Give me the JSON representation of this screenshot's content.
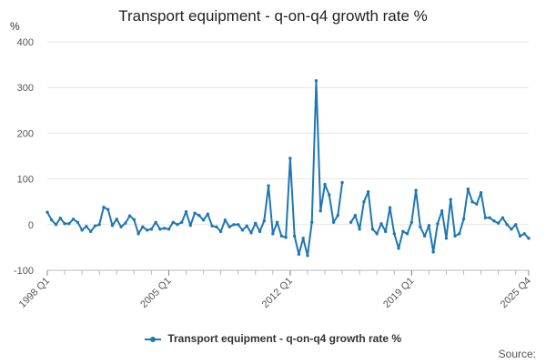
{
  "page": {
    "title": "Transport equipment - q-on-q4 growth rate %",
    "source": "Source:"
  },
  "chart_data": {
    "type": "line",
    "title": "Transport equipment - q-on-q4 growth rate %",
    "ylabel": "%",
    "xlabel": "",
    "ylim": [
      -100,
      400
    ],
    "yticks": [
      -100,
      0,
      100,
      200,
      300,
      400
    ],
    "x_tick_labels": [
      {
        "label": "1998 Q1",
        "index": 0
      },
      {
        "label": "2005 Q1",
        "index": 28
      },
      {
        "label": "2012 Q1",
        "index": 56
      },
      {
        "label": "2019 Q1",
        "index": 84
      },
      {
        "label": "2025 Q4",
        "index": 111
      }
    ],
    "grid": true,
    "legend": "bottom",
    "series": [
      {
        "name": "Transport equipment - q-on-q4 growth rate %",
        "color": "#1f77b4",
        "values": [
          27,
          10,
          0,
          14,
          2,
          2,
          12,
          5,
          -12,
          -4,
          -15,
          -3,
          0,
          38,
          33,
          -2,
          12,
          -5,
          3,
          19,
          11,
          -20,
          -5,
          -12,
          -10,
          5,
          -10,
          -8,
          -10,
          5,
          0,
          5,
          28,
          -2,
          25,
          20,
          10,
          23,
          -3,
          -5,
          -15,
          10,
          -5,
          0,
          0,
          -12,
          -3,
          -18,
          3,
          -15,
          8,
          85,
          -20,
          5,
          -25,
          -28,
          145,
          -25,
          -65,
          -30,
          -68,
          5,
          315,
          30,
          88,
          65,
          5,
          20,
          92,
          null,
          5,
          20,
          -10,
          50,
          72,
          -10,
          -20,
          2,
          -15,
          37,
          -20,
          -52,
          -15,
          -20,
          5,
          75,
          -5,
          -25,
          -2,
          -60,
          2,
          30,
          -30,
          55,
          -25,
          -20,
          12,
          78,
          50,
          45,
          70,
          15,
          15,
          8,
          3,
          15,
          0,
          -10,
          0,
          -25,
          -20,
          -30
        ]
      }
    ]
  }
}
